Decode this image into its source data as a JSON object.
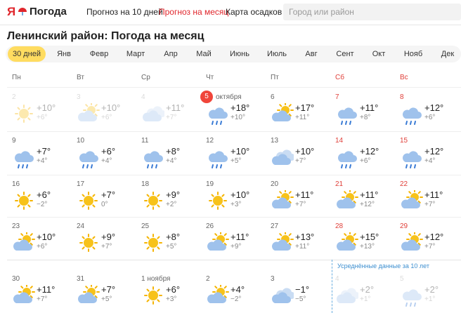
{
  "header": {
    "logo": "Я",
    "brand": "Погода",
    "nav": [
      "Прогноз на 10 дней",
      "Прогноз на месяц",
      "Карта осадков"
    ],
    "search_placeholder": "Город или район"
  },
  "title": "Ленинский район: Погода на месяц",
  "tabs": [
    "30 дней",
    "Янв",
    "Февр",
    "Март",
    "Апр",
    "Май",
    "Июнь",
    "Июль",
    "Авг",
    "Сент",
    "Окт",
    "Нояб",
    "Дек"
  ],
  "weekdays": [
    "Пн",
    "Вт",
    "Ср",
    "Чт",
    "Пт",
    "Сб",
    "Вс"
  ],
  "weeks": [
    [
      {
        "day": "2",
        "day_temp": "+10°",
        "night_temp": "+6°"
      },
      {
        "day": "3",
        "day_temp": "+10°",
        "night_temp": "+6°"
      },
      {
        "day": "4",
        "day_temp": "+11°",
        "night_temp": "+7°"
      },
      {
        "day": "5",
        "month": "октября",
        "day_temp": "+18°",
        "night_temp": "+10°"
      },
      {
        "day": "6",
        "day_temp": "+17°",
        "night_temp": "+11°"
      },
      {
        "day": "7",
        "day_temp": "+11°",
        "night_temp": "+8°"
      },
      {
        "day": "8",
        "day_temp": "+12°",
        "night_temp": "+6°"
      }
    ],
    [
      {
        "day": "9",
        "day_temp": "+7°",
        "night_temp": "+4°"
      },
      {
        "day": "10",
        "day_temp": "+6°",
        "night_temp": "+4°"
      },
      {
        "day": "11",
        "day_temp": "+8°",
        "night_temp": "+4°"
      },
      {
        "day": "12",
        "day_temp": "+10°",
        "night_temp": "+5°"
      },
      {
        "day": "13",
        "day_temp": "+10°",
        "night_temp": "+7°"
      },
      {
        "day": "14",
        "day_temp": "+12°",
        "night_temp": "+6°"
      },
      {
        "day": "15",
        "day_temp": "+12°",
        "night_temp": "+4°"
      }
    ],
    [
      {
        "day": "16",
        "day_temp": "+6°",
        "night_temp": "−2°"
      },
      {
        "day": "17",
        "day_temp": "+7°",
        "night_temp": "0°"
      },
      {
        "day": "18",
        "day_temp": "+9°",
        "night_temp": "+2°"
      },
      {
        "day": "19",
        "day_temp": "+10°",
        "night_temp": "+3°"
      },
      {
        "day": "20",
        "day_temp": "+11°",
        "night_temp": "+7°"
      },
      {
        "day": "21",
        "day_temp": "+11°",
        "night_temp": "+12°"
      },
      {
        "day": "22",
        "day_temp": "+11°",
        "night_temp": "+7°"
      }
    ],
    [
      {
        "day": "23",
        "day_temp": "+10°",
        "night_temp": "+6°"
      },
      {
        "day": "24",
        "day_temp": "+9°",
        "night_temp": "+7°"
      },
      {
        "day": "25",
        "day_temp": "+8°",
        "night_temp": "+5°"
      },
      {
        "day": "26",
        "day_temp": "+11°",
        "night_temp": "+9°"
      },
      {
        "day": "27",
        "day_temp": "+13°",
        "night_temp": "+11°"
      },
      {
        "day": "28",
        "day_temp": "+15°",
        "night_temp": "+13°"
      },
      {
        "day": "29",
        "day_temp": "+12°",
        "night_temp": "+7°"
      }
    ],
    [
      {
        "day": "30",
        "day_temp": "+11°",
        "night_temp": "+7°"
      },
      {
        "day": "31",
        "day_temp": "+7°",
        "night_temp": "+5°"
      },
      {
        "day": "1 ноября",
        "day_temp": "+6°",
        "night_temp": "+3°"
      },
      {
        "day": "2",
        "day_temp": "+4°",
        "night_temp": "−2°"
      },
      {
        "day": "3",
        "day_temp": "−1°",
        "night_temp": "−5°"
      },
      {
        "day": "4",
        "day_temp": "+2°",
        "night_temp": "+1°"
      },
      {
        "day": "5",
        "day_temp": "+2°",
        "night_temp": "+1°"
      }
    ]
  ],
  "note": "Усреднённые данные за 10 лет"
}
